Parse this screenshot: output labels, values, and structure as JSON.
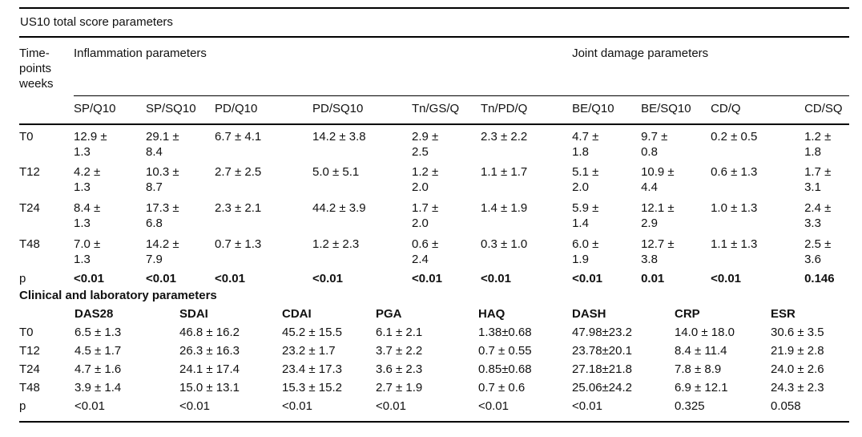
{
  "table": {
    "title": "US10 total score parameters",
    "us10": {
      "row_header": "Time-\npoints\nweeks",
      "group_headers": [
        {
          "label": "Inflammation parameters",
          "span": 6
        },
        {
          "label": "Joint damage parameters",
          "span": 4
        }
      ],
      "columns": [
        "SP/Q10",
        "SP/SQ10",
        "PD/Q10",
        "PD/SQ10",
        "Tn/GS/Q",
        "Tn/PD/Q",
        "BE/Q10",
        "BE/SQ10",
        "CD/Q",
        "CD/SQ"
      ],
      "rows": [
        {
          "label": "T0",
          "values": [
            "12.9 ±\n1.3",
            "29.1 ±\n8.4",
            "6.7 ± 4.1",
            "14.2 ± 3.8",
            "2.9 ±\n2.5",
            "2.3 ± 2.2",
            "4.7 ±\n1.8",
            "9.7 ±\n0.8",
            "0.2 ± 0.5",
            "1.2 ±\n1.8"
          ]
        },
        {
          "label": "T12",
          "values": [
            "4.2 ±\n1.3",
            "10.3 ±\n8.7",
            "2.7 ± 2.5",
            "5.0 ± 5.1",
            "1.2 ±\n2.0",
            "1.1 ± 1.7",
            "5.1 ±\n2.0",
            "10.9 ±\n4.4",
            "0.6 ± 1.3",
            "1.7 ±\n3.1"
          ]
        },
        {
          "label": "T24",
          "values": [
            "8.4 ±\n1.3",
            "17.3 ±\n6.8",
            "2.3 ± 2.1",
            "44.2 ± 3.9",
            "1.7 ±\n2.0",
            "1.4 ± 1.9",
            "5.9 ±\n1.4",
            "12.1 ±\n2.9",
            "1.0 ± 1.3",
            "2.4 ±\n3.3"
          ]
        },
        {
          "label": "T48",
          "values": [
            "7.0 ±\n1.3",
            "14.2 ±\n7.9",
            "0.7 ± 1.3",
            "1.2 ± 2.3",
            "0.6 ±\n2.4",
            "0.3 ± 1.0",
            "6.0 ±\n1.9",
            "12.7 ±\n3.8",
            "1.1 ± 1.3",
            "2.5 ±\n3.6"
          ]
        }
      ],
      "p_row": {
        "label": "p",
        "values": [
          "<0.01",
          "<0.01",
          "<0.01",
          "<0.01",
          "<0.01",
          "<0.01",
          "<0.01",
          "0.01",
          "<0.01",
          "0.146"
        ]
      }
    },
    "clinical": {
      "section_label": "Clinical and laboratory parameters",
      "columns": [
        "DAS28",
        "SDAI",
        "CDAI",
        "PGA",
        "HAQ",
        "DASH",
        "CRP",
        "ESR"
      ],
      "rows": [
        {
          "label": "T0",
          "values": [
            "6.5 ± 1.3",
            "46.8 ± 16.2",
            "45.2 ± 15.5",
            "6.1 ± 2.1",
            "1.38±0.68",
            "47.98±23.2",
            "14.0 ± 18.0",
            "30.6 ± 3.5"
          ]
        },
        {
          "label": "T12",
          "values": [
            "4.5 ± 1.7",
            "26.3 ± 16.3",
            "23.2 ± 1.7",
            "3.7 ± 2.2",
            "0.7 ± 0.55",
            "23.78±20.1",
            "8.4 ± 11.4",
            "21.9 ± 2.8"
          ]
        },
        {
          "label": "T24",
          "values": [
            "4.7 ± 1.6",
            "24.1 ± 17.4",
            "23.4 ± 17.3",
            "3.6 ± 2.3",
            "0.85±0.68",
            "27.18±21.8",
            "7.8 ± 8.9",
            "24.0 ± 2.6"
          ]
        },
        {
          "label": "T48",
          "values": [
            "3.9 ± 1.4",
            "15.0 ± 13.1",
            "15.3 ± 15.2",
            "2.7 ± 1.9",
            "0.7 ± 0.6",
            "25.06±24.2",
            "6.9 ± 12.1",
            "24.3 ± 2.3"
          ]
        }
      ],
      "p_row": {
        "label": "p",
        "values": [
          "<0.01",
          "<0.01",
          "<0.01",
          "<0.01",
          "<0.01",
          "<0.01",
          "0.325",
          "0.058"
        ]
      }
    },
    "colors": {
      "rule": "#000000",
      "text": "#111111",
      "background": "#ffffff"
    }
  }
}
